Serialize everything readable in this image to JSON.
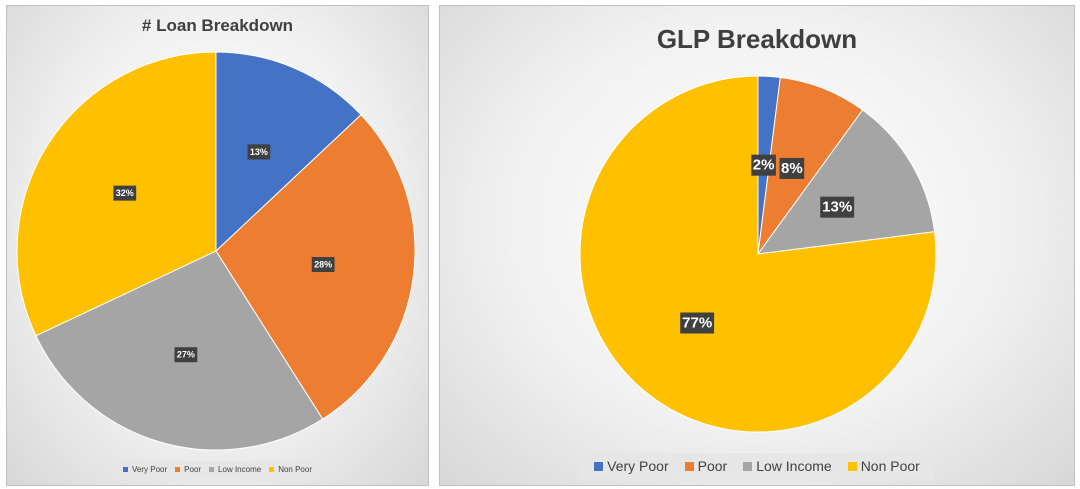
{
  "chart_data": [
    {
      "type": "pie",
      "title": "# Loan Breakdown",
      "categories": [
        "Very Poor",
        "Poor",
        "Low Income",
        "Non Poor"
      ],
      "values": [
        13,
        28,
        27,
        32
      ],
      "labels": [
        "13%",
        "28%",
        "27%",
        "32%"
      ],
      "colors": [
        "#4472C4",
        "#ED7D31",
        "#A5A5A5",
        "#FFC000"
      ],
      "legend": "bottom"
    },
    {
      "type": "pie",
      "title": "GLP Breakdown",
      "categories": [
        "Very Poor",
        "Poor",
        "Low Income",
        "Non Poor"
      ],
      "values": [
        2,
        8,
        13,
        77
      ],
      "labels": [
        "2%",
        "8%",
        "13%",
        "77%"
      ],
      "colors": [
        "#4472C4",
        "#ED7D31",
        "#A5A5A5",
        "#FFC000"
      ],
      "legend": "bottom"
    }
  ]
}
